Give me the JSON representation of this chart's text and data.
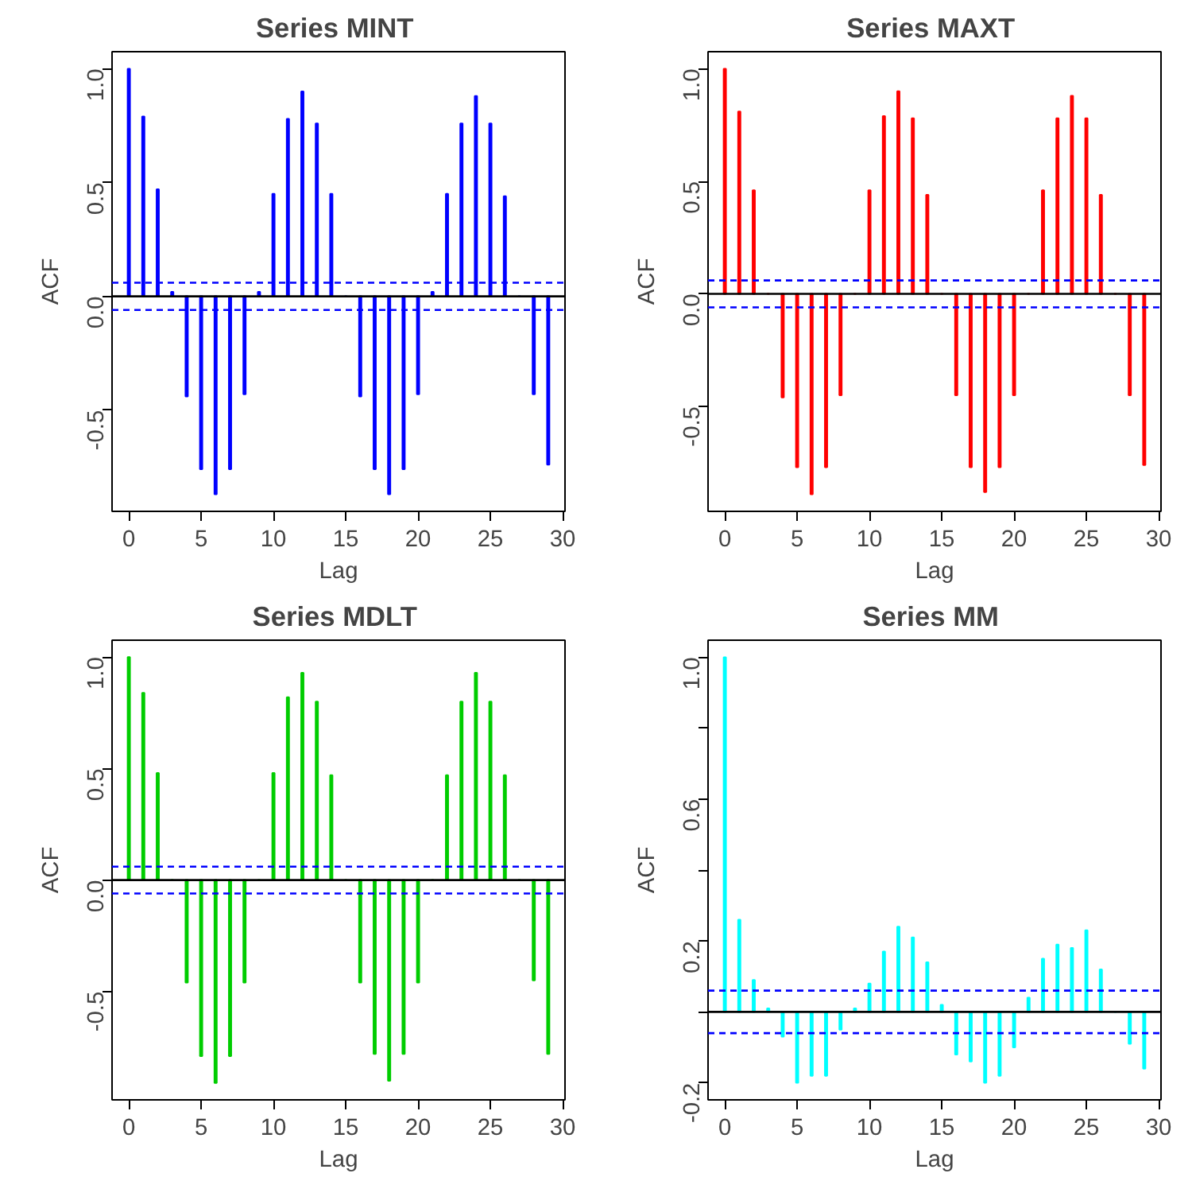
{
  "chart_data": [
    {
      "type": "bar",
      "title": "Series  MINT",
      "xlabel": "Lag",
      "ylabel": "ACF",
      "x": [
        0,
        1,
        2,
        3,
        4,
        5,
        6,
        7,
        8,
        9,
        10,
        11,
        12,
        13,
        14,
        15,
        16,
        17,
        18,
        19,
        20,
        21,
        22,
        23,
        24,
        25,
        26,
        27,
        28,
        29
      ],
      "series": [
        {
          "color": "#0000ff",
          "values": [
            1.0,
            0.79,
            0.47,
            0.02,
            -0.44,
            -0.76,
            -0.87,
            -0.76,
            -0.43,
            0.02,
            0.45,
            0.78,
            0.9,
            0.76,
            0.45,
            0.0,
            -0.44,
            -0.76,
            -0.87,
            -0.76,
            -0.43,
            0.02,
            0.45,
            0.76,
            0.88,
            0.76,
            0.44,
            0.0,
            -0.43,
            -0.74
          ]
        }
      ],
      "xlim": [
        -1.16,
        30.16
      ],
      "ylim": [
        -0.945,
        1.075
      ],
      "xticks": [
        0,
        5,
        10,
        15,
        20,
        25,
        30
      ],
      "yticks": [
        {
          "value": -0.5,
          "label": "-0.5"
        },
        {
          "value": 0,
          "label": "0.0"
        },
        {
          "value": 0.5,
          "label": "0.5"
        },
        {
          "value": 1,
          "label": "1.0"
        }
      ],
      "ref_lines": [
        {
          "axis": "y",
          "value": 0,
          "color": "#000000",
          "line_style": "solid"
        },
        {
          "axis": "y",
          "value": 0.06,
          "color": "#0000ff",
          "line_style": "dashed"
        },
        {
          "axis": "y",
          "value": -0.06,
          "color": "#0000ff",
          "line_style": "dashed"
        }
      ]
    },
    {
      "type": "bar",
      "title": "Series  MAXT",
      "xlabel": "Lag",
      "ylabel": "ACF",
      "x": [
        0,
        1,
        2,
        3,
        4,
        5,
        6,
        7,
        8,
        9,
        10,
        11,
        12,
        13,
        14,
        15,
        16,
        17,
        18,
        19,
        20,
        21,
        22,
        23,
        24,
        25,
        26,
        27,
        28,
        29
      ],
      "series": [
        {
          "color": "#ff0000",
          "values": [
            1.0,
            0.81,
            0.46,
            0.0,
            -0.46,
            -0.77,
            -0.89,
            -0.77,
            -0.45,
            0.0,
            0.46,
            0.79,
            0.9,
            0.78,
            0.44,
            0.0,
            -0.45,
            -0.77,
            -0.88,
            -0.77,
            -0.45,
            0.0,
            0.46,
            0.78,
            0.88,
            0.78,
            0.44,
            0.0,
            -0.45,
            -0.76
          ]
        }
      ],
      "xlim": [
        -1.16,
        30.16
      ],
      "ylim": [
        -0.966,
        1.076
      ],
      "xticks": [
        0,
        5,
        10,
        15,
        20,
        25,
        30
      ],
      "yticks": [
        {
          "value": -0.5,
          "label": "-0.5"
        },
        {
          "value": 0,
          "label": "0.0"
        },
        {
          "value": 0.5,
          "label": "0.5"
        },
        {
          "value": 1,
          "label": "1.0"
        }
      ],
      "ref_lines": [
        {
          "axis": "y",
          "value": 0,
          "color": "#000000",
          "line_style": "solid"
        },
        {
          "axis": "y",
          "value": 0.06,
          "color": "#0000ff",
          "line_style": "dashed"
        },
        {
          "axis": "y",
          "value": -0.06,
          "color": "#0000ff",
          "line_style": "dashed"
        }
      ]
    },
    {
      "type": "bar",
      "title": "Series  MDLT",
      "xlabel": "Lag",
      "ylabel": "ACF",
      "x": [
        0,
        1,
        2,
        3,
        4,
        5,
        6,
        7,
        8,
        9,
        10,
        11,
        12,
        13,
        14,
        15,
        16,
        17,
        18,
        19,
        20,
        21,
        22,
        23,
        24,
        25,
        26,
        27,
        28,
        29
      ],
      "series": [
        {
          "color": "#00cd00",
          "values": [
            1.0,
            0.84,
            0.48,
            0.0,
            -0.46,
            -0.79,
            -0.91,
            -0.79,
            -0.46,
            0.0,
            0.48,
            0.82,
            0.93,
            0.8,
            0.47,
            0.0,
            -0.46,
            -0.78,
            -0.9,
            -0.78,
            -0.46,
            0.0,
            0.47,
            0.8,
            0.93,
            0.8,
            0.47,
            0.0,
            -0.45,
            -0.78
          ]
        }
      ],
      "xlim": [
        -1.16,
        30.16
      ],
      "ylim": [
        -0.986,
        1.076
      ],
      "xticks": [
        0,
        5,
        10,
        15,
        20,
        25,
        30
      ],
      "yticks": [
        {
          "value": -0.5,
          "label": "-0.5"
        },
        {
          "value": 0,
          "label": "0.0"
        },
        {
          "value": 0.5,
          "label": "0.5"
        },
        {
          "value": 1,
          "label": "1.0"
        }
      ],
      "ref_lines": [
        {
          "axis": "y",
          "value": 0,
          "color": "#000000",
          "line_style": "solid"
        },
        {
          "axis": "y",
          "value": 0.06,
          "color": "#0000ff",
          "line_style": "dashed"
        },
        {
          "axis": "y",
          "value": -0.06,
          "color": "#0000ff",
          "line_style": "dashed"
        }
      ]
    },
    {
      "type": "bar",
      "title": "Series  MM",
      "xlabel": "Lag",
      "ylabel": "ACF",
      "x": [
        0,
        1,
        2,
        3,
        4,
        5,
        6,
        7,
        8,
        9,
        10,
        11,
        12,
        13,
        14,
        15,
        16,
        17,
        18,
        19,
        20,
        21,
        22,
        23,
        24,
        25,
        26,
        27,
        28,
        29
      ],
      "series": [
        {
          "color": "#00ffff",
          "values": [
            1.0,
            0.26,
            0.09,
            0.01,
            -0.07,
            -0.2,
            -0.18,
            -0.18,
            -0.05,
            0.01,
            0.08,
            0.17,
            0.24,
            0.21,
            0.14,
            0.02,
            -0.12,
            -0.14,
            -0.2,
            -0.18,
            -0.1,
            0.04,
            0.15,
            0.19,
            0.18,
            0.23,
            0.12,
            0.0,
            -0.09,
            -0.16
          ]
        }
      ],
      "xlim": [
        -1.16,
        30.16
      ],
      "ylim": [
        -0.248,
        1.048
      ],
      "xticks": [
        0,
        5,
        10,
        15,
        20,
        25,
        30
      ],
      "yticks": [
        -0.2,
        {
          "value": 0,
          "label": null
        },
        0.2,
        {
          "value": 0.4,
          "label": null
        },
        0.6,
        {
          "value": 0.8,
          "label": null
        },
        {
          "value": 1,
          "label": "1.0"
        }
      ],
      "ref_lines": [
        {
          "axis": "y",
          "value": 0,
          "color": "#000000",
          "line_style": "solid"
        },
        {
          "axis": "y",
          "value": 0.06,
          "color": "#0000ff",
          "line_style": "dashed"
        },
        {
          "axis": "y",
          "value": -0.06,
          "color": "#0000ff",
          "line_style": "dashed"
        }
      ]
    }
  ]
}
